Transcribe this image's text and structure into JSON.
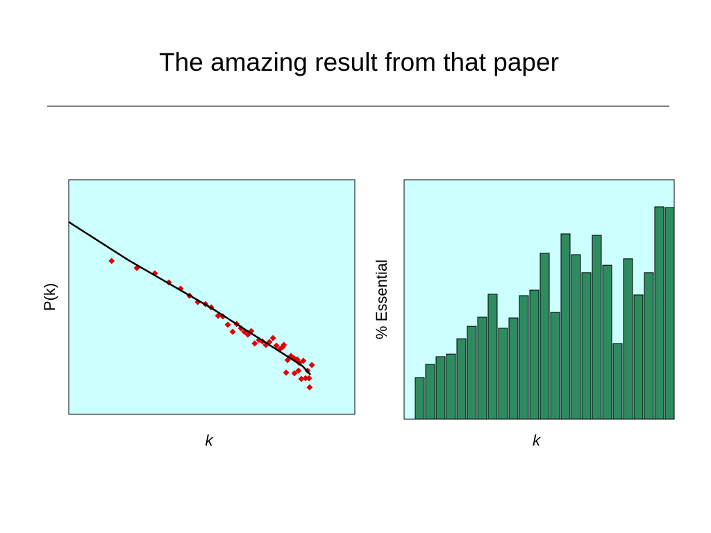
{
  "title": "The amazing result from that paper",
  "chart_data": [
    {
      "type": "scatter",
      "xlabel": "k",
      "ylabel": "P(k)",
      "background": "#ccffff",
      "xlim": [
        0,
        100
      ],
      "ylim": [
        0,
        100
      ],
      "color": "#e00000",
      "line_color": "#000000",
      "x": [
        15.0,
        23.8,
        30.1,
        35.0,
        39.1,
        42.2,
        45.1,
        47.8,
        49.8,
        52.2,
        53.9,
        55.6,
        57.3,
        58.7,
        60.2,
        61.4,
        62.6,
        63.8,
        65.0,
        66.5,
        67.7,
        68.9,
        70.1,
        71.4,
        72.6,
        73.8,
        74.8,
        75.2,
        76.5,
        77.7,
        78.6,
        79.9,
        80.6,
        82.0,
        85.0,
        76.0,
        78.9,
        80.3,
        81.3,
        82.8,
        84.0,
        84.2,
        83.5
      ],
      "y": [
        65.4,
        62.4,
        60.1,
        56.2,
        53.6,
        50.6,
        47.9,
        47.0,
        45.6,
        42.0,
        41.7,
        38.2,
        35.2,
        38.5,
        36.7,
        35.2,
        34.0,
        35.5,
        30.2,
        31.7,
        31.1,
        29.6,
        30.8,
        32.5,
        29.3,
        27.8,
        28.7,
        29.6,
        23.1,
        24.9,
        24.0,
        23.4,
        21.9,
        22.8,
        21.0,
        17.8,
        17.5,
        18.6,
        15.1,
        15.4,
        15.4,
        11.5,
        18.6
      ],
      "line_x": [
        0,
        16.0,
        20.9,
        50.0,
        81.6,
        84.5
      ],
      "line_y": [
        82.0,
        69.5,
        65.7,
        45.2,
        20.7,
        16.9
      ]
    },
    {
      "type": "bar",
      "xlabel": "k",
      "ylabel": "% Essential",
      "background": "#ccffff",
      "ylim": [
        0,
        100
      ],
      "color": "#2e8b5f",
      "values": [
        17.4,
        22.9,
        26.1,
        27.2,
        33.6,
        38.8,
        42.6,
        52.2,
        38.0,
        42.3,
        51.6,
        53.9,
        69.3,
        44.6,
        77.4,
        68.7,
        61.2,
        76.8,
        64.3,
        31.6,
        67.0,
        51.9,
        61.2,
        88.7,
        88.4
      ]
    }
  ]
}
